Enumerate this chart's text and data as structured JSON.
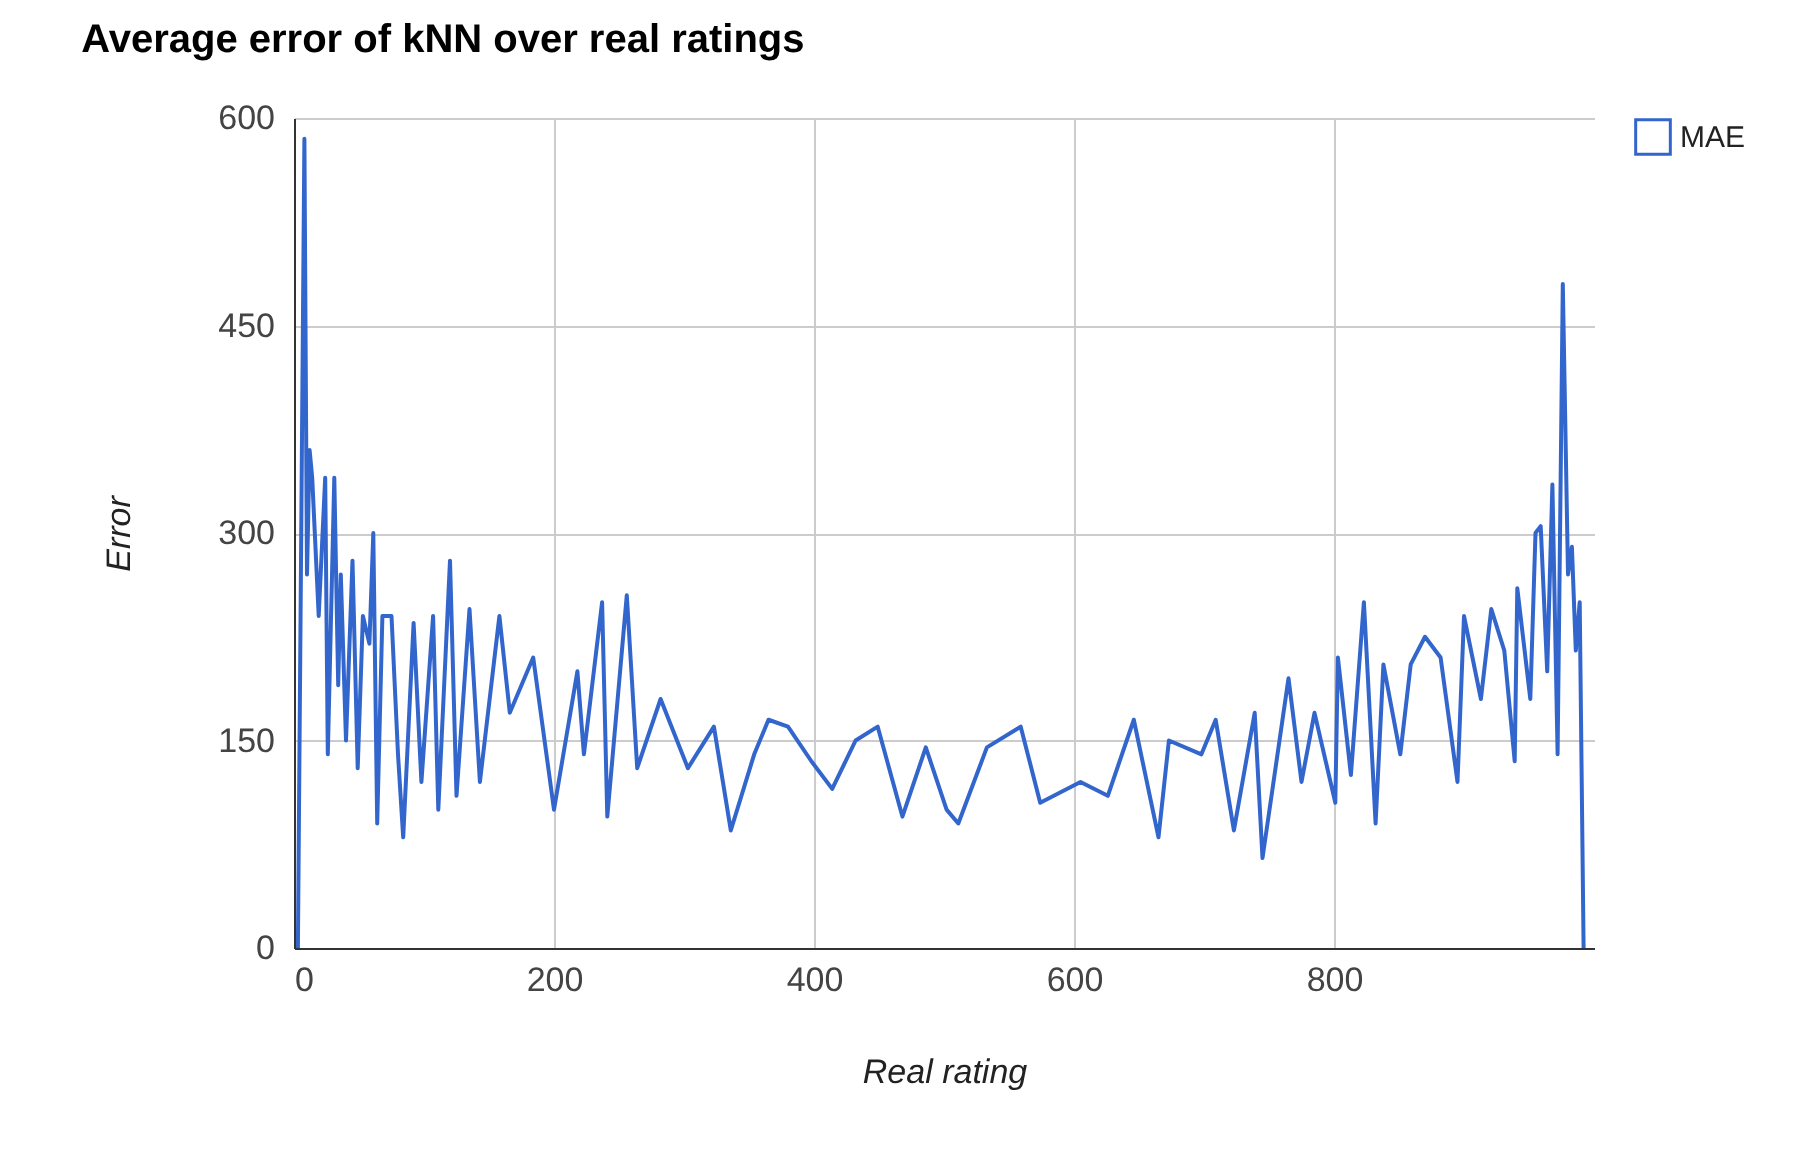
{
  "chart_data": {
    "type": "line",
    "title": "Average error of kNN over real ratings",
    "xlabel": "Real rating",
    "ylabel": "Error",
    "x": [
      3,
      8,
      10,
      12,
      14,
      19,
      24,
      26,
      31,
      34,
      36,
      40,
      45,
      49,
      53,
      58,
      61,
      64,
      68,
      75,
      80,
      84,
      92,
      98,
      107,
      111,
      120,
      125,
      135,
      143,
      158,
      166,
      184,
      200,
      218,
      223,
      237,
      241,
      256,
      264,
      282,
      303,
      323,
      336,
      354,
      365,
      380,
      398,
      414,
      432,
      449,
      468,
      486,
      502,
      511,
      533,
      559,
      574,
      605,
      626,
      646,
      665,
      673,
      698,
      709,
      723,
      739,
      745,
      765,
      775,
      785,
      801,
      803,
      813,
      823,
      832,
      838,
      851,
      859,
      870,
      882,
      895,
      900,
      913,
      921,
      931,
      939,
      941,
      951,
      955,
      959,
      964,
      968,
      972,
      976,
      980,
      983,
      986,
      989,
      992
    ],
    "series": [
      {
        "name": "MAE",
        "color": "#3366cc",
        "values": [
          0,
          585,
          270,
          360,
          340,
          240,
          340,
          140,
          340,
          190,
          270,
          150,
          280,
          130,
          240,
          220,
          300,
          90,
          240,
          240,
          140,
          80,
          235,
          120,
          240,
          100,
          280,
          110,
          245,
          120,
          240,
          170,
          210,
          100,
          200,
          140,
          250,
          95,
          255,
          130,
          180,
          130,
          160,
          85,
          140,
          165,
          160,
          135,
          115,
          150,
          160,
          95,
          145,
          100,
          90,
          145,
          160,
          105,
          120,
          110,
          165,
          80,
          150,
          140,
          165,
          85,
          170,
          65,
          195,
          120,
          170,
          105,
          210,
          125,
          250,
          90,
          205,
          140,
          205,
          225,
          210,
          120,
          240,
          180,
          245,
          215,
          135,
          260,
          180,
          300,
          305,
          200,
          335,
          140,
          480,
          270,
          290,
          215,
          250,
          0
        ]
      }
    ],
    "xlim": [
      0,
      1000
    ],
    "xticks": [
      0,
      200,
      400,
      600,
      800
    ],
    "ylim": [
      0,
      600
    ],
    "yticks": [
      0,
      150,
      300,
      450,
      600
    ],
    "grid": true,
    "legend": "top right"
  }
}
